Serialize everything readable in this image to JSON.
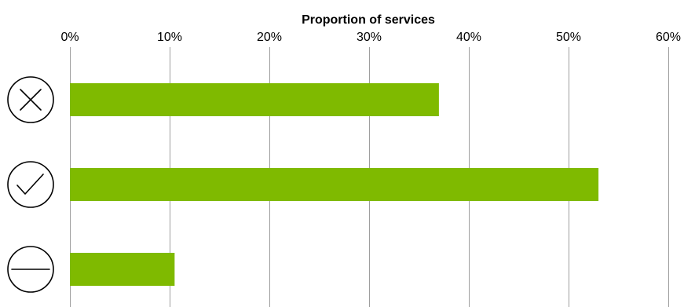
{
  "chart_data": {
    "type": "bar",
    "orientation": "horizontal",
    "title": "",
    "xlabel": "Proportion of services",
    "ylabel": "",
    "xlim": [
      0,
      0.6
    ],
    "x_ticks": [
      0,
      0.1,
      0.2,
      0.3,
      0.4,
      0.5,
      0.6
    ],
    "x_tick_labels": [
      "0%",
      "10%",
      "20%",
      "30%",
      "40%",
      "50%",
      "60%"
    ],
    "x_axis_position": "top",
    "grid": "vertical",
    "legend": "none",
    "categories": [
      "cross-in-circle-icon",
      "check-in-circle-icon",
      "minus-in-circle-icon"
    ],
    "category_icons": [
      "cross-in-circle-icon",
      "check-in-circle-icon",
      "minus-in-circle-icon"
    ],
    "values": [
      0.37,
      0.53,
      0.105
    ],
    "colors": {
      "bar": "#7fba00",
      "grid": "#9e9e9e",
      "text": "#000000"
    }
  }
}
